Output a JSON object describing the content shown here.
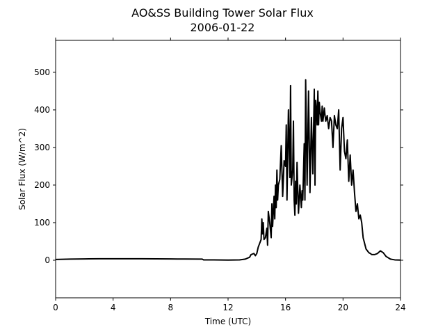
{
  "chart_data": {
    "type": "line",
    "title": "AO&SS Building Tower Solar Flux",
    "subtitle": "2006-01-22",
    "xlabel": "Time (UTC)",
    "ylabel": "Solar Flux (W/m^2)",
    "xlim": [
      0,
      24
    ],
    "ylim": [
      -100,
      585
    ],
    "xticks": [
      0,
      4,
      8,
      12,
      16,
      20,
      24
    ],
    "xtick_labels": [
      "0",
      "4",
      "8",
      "12",
      "16",
      "20",
      "24"
    ],
    "yticks": [
      0,
      100,
      200,
      300,
      400,
      500
    ],
    "ytick_labels": [
      "0",
      "100",
      "200",
      "300",
      "400",
      "500"
    ],
    "grid": false,
    "legend": "none",
    "line_color": "#000000",
    "series": [
      {
        "x": [
          0,
          1,
          2,
          3,
          4,
          5,
          6,
          7,
          8,
          9,
          10,
          10.2,
          10.3,
          11,
          12,
          12.8,
          13.2,
          13.5,
          13.6,
          13.8,
          13.9,
          14.0,
          14.1,
          14.2,
          14.3,
          14.35,
          14.4,
          14.45,
          14.5,
          14.6,
          14.7,
          14.75,
          14.8,
          14.9,
          15.0,
          15.05,
          15.1,
          15.2,
          15.25,
          15.3,
          15.35,
          15.4,
          15.45,
          15.5,
          15.6,
          15.7,
          15.8,
          15.9,
          16.0,
          16.05,
          16.1,
          16.2,
          16.3,
          16.35,
          16.4,
          16.5,
          16.55,
          16.6,
          16.65,
          16.7,
          16.75,
          16.8,
          16.9,
          16.95,
          17.0,
          17.1,
          17.15,
          17.2,
          17.3,
          17.35,
          17.4,
          17.5,
          17.6,
          17.7,
          17.8,
          17.9,
          18.0,
          18.05,
          18.1,
          18.15,
          18.2,
          18.25,
          18.3,
          18.35,
          18.4,
          18.5,
          18.55,
          18.6,
          18.7,
          18.75,
          18.8,
          18.9,
          19.0,
          19.1,
          19.2,
          19.3,
          19.4,
          19.5,
          19.6,
          19.7,
          19.8,
          19.9,
          20.0,
          20.1,
          20.2,
          20.3,
          20.4,
          20.5,
          20.6,
          20.7,
          20.8,
          20.9,
          21.0,
          21.1,
          21.2,
          21.3,
          21.4,
          21.5,
          21.6,
          21.7,
          21.8,
          21.9,
          22.0,
          22.2,
          22.4,
          22.6,
          22.8,
          23.0,
          23.3,
          23.6,
          24
        ],
        "values": [
          2,
          3,
          3.5,
          3.8,
          4,
          4,
          3.8,
          3.6,
          3.4,
          3.2,
          3,
          3,
          1,
          1,
          0.5,
          1,
          3,
          8,
          15,
          18,
          12,
          18,
          35,
          45,
          55,
          110,
          70,
          100,
          55,
          60,
          85,
          40,
          130,
          100,
          60,
          150,
          90,
          170,
          110,
          200,
          140,
          240,
          160,
          200,
          215,
          305,
          170,
          265,
          250,
          360,
          160,
          400,
          220,
          465,
          200,
          240,
          370,
          160,
          120,
          210,
          150,
          260,
          125,
          160,
          200,
          140,
          185,
          160,
          310,
          160,
          480,
          200,
          450,
          180,
          380,
          230,
          455,
          200,
          425,
          400,
          360,
          450,
          360,
          420,
          395,
          370,
          410,
          370,
          405,
          385,
          370,
          385,
          350,
          380,
          370,
          300,
          385,
          360,
          350,
          400,
          240,
          350,
          380,
          290,
          270,
          320,
          210,
          280,
          200,
          240,
          180,
          130,
          150,
          110,
          120,
          100,
          60,
          45,
          30,
          25,
          20,
          18,
          15,
          15,
          18,
          25,
          20,
          10,
          3,
          1,
          0.5
        ]
      }
    ]
  }
}
